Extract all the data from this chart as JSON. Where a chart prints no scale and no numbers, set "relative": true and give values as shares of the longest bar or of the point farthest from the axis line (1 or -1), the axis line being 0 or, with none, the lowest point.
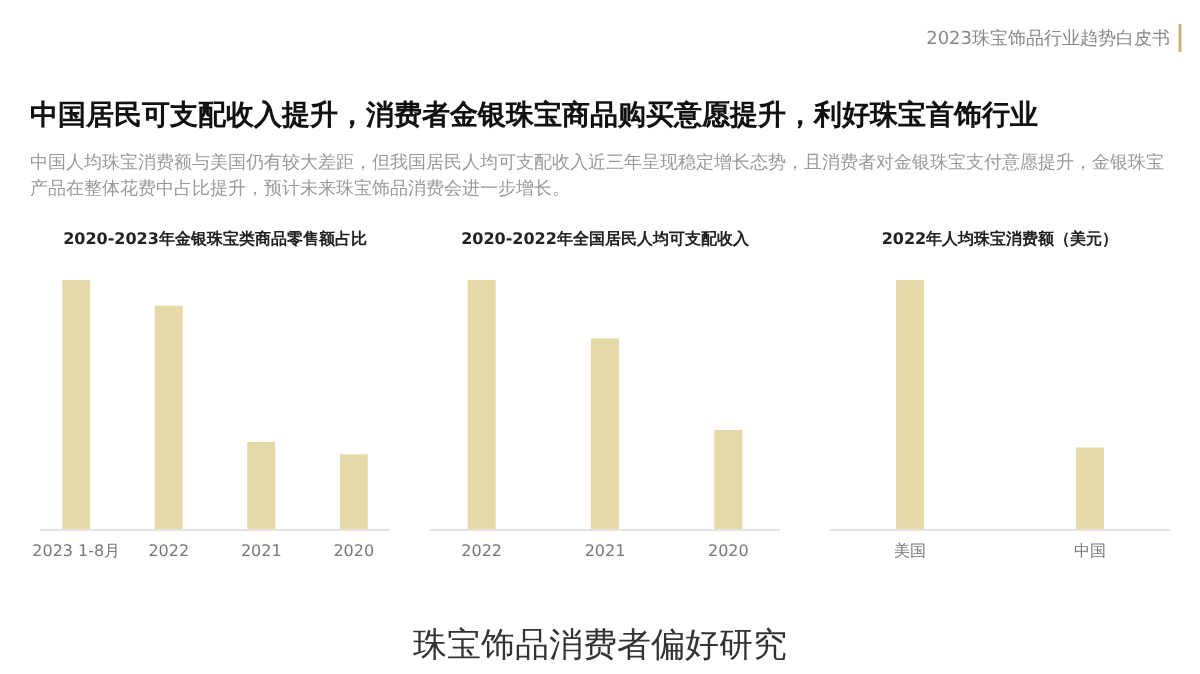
{
  "chart_data": [
    {
      "type": "other",
      "title": "中国居民可支配收入提升，消费者金银珠宝商品购买意愿提升，利好珠宝首饰行业",
      "subtitle": "中国人均珠宝消费额与美国仍有较大差距，但我国居民人均可支配收入近三年呈现稳定增长态势，且消费者对金银珠宝支付意愿提升，金银珠宝产品在整体花费中占比提升，预计未来珠宝饰品消费会进一步增长。",
      "annotations": [
        "2023珠宝饰品行业趋势白皮书",
        "珠宝饰品消费者偏好研究"
      ]
    },
    {
      "type": "bar",
      "title": "2020-2023年金银珠宝类商品零售额占比",
      "categories": [
        "2023 1-8月",
        "2022",
        "2021",
        "2020"
      ],
      "values": [
        1,
        0.897,
        0.352,
        0.303
      ],
      "relative": true,
      "color": "#e6d9a8"
    },
    {
      "type": "bar",
      "title": "2020-2022年全国居民人均可支配收入",
      "categories": [
        "2022",
        "2021",
        "2020"
      ],
      "values": [
        1,
        0.766,
        0.4
      ],
      "relative": true,
      "color": "#e6d9a8"
    },
    {
      "type": "bar",
      "title": "2022年人均珠宝消费额（美元）",
      "categories": [
        "美国",
        "中国"
      ],
      "values": [
        1,
        0.33
      ],
      "relative": true,
      "color": "#e6d9a8"
    }
  ]
}
